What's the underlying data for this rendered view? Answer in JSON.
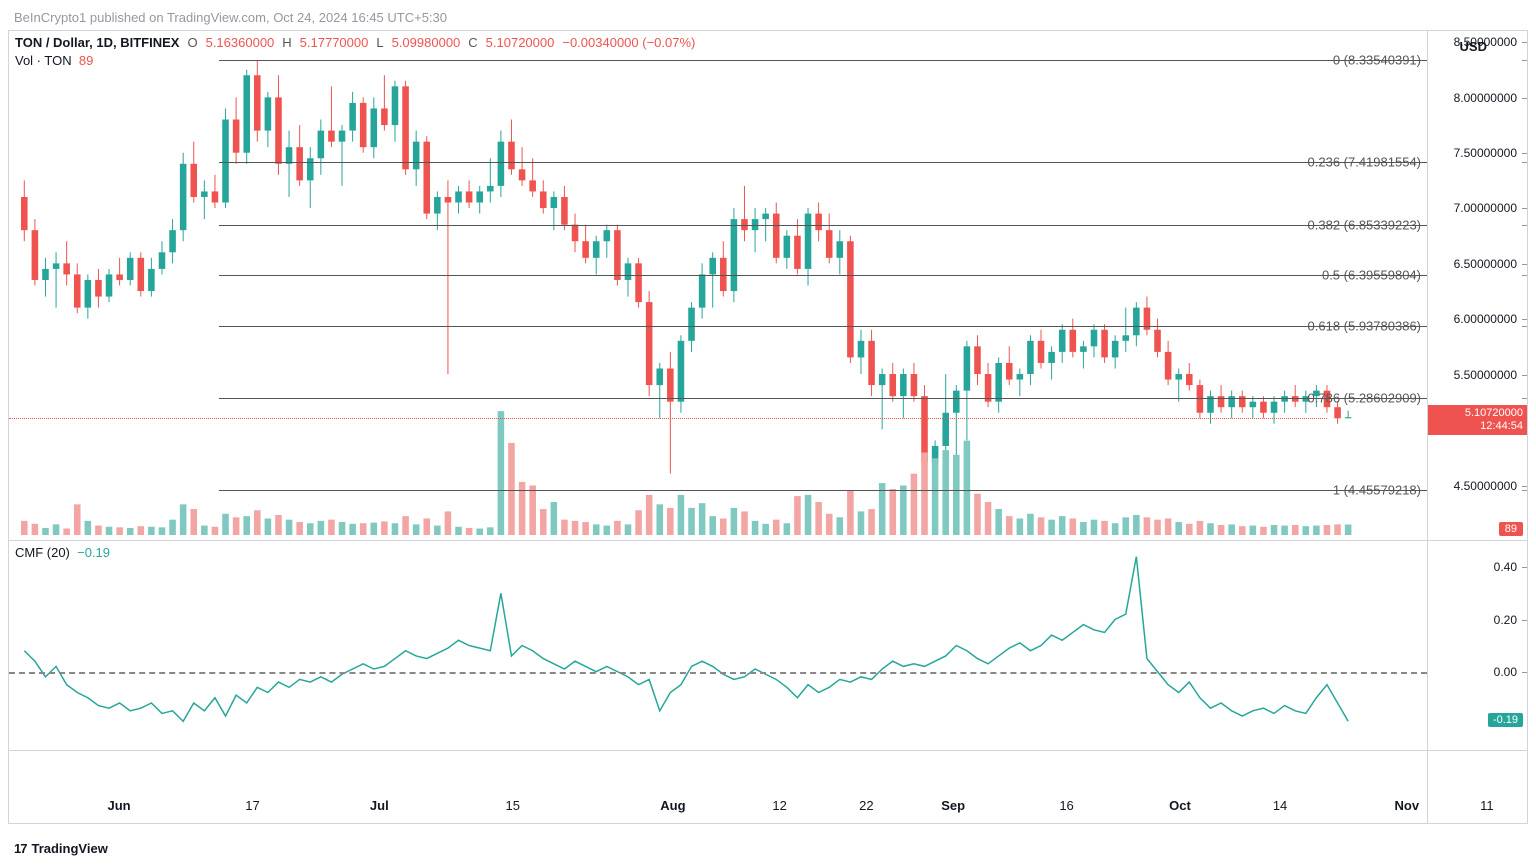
{
  "watermark": "BeInCrypto1 published on TradingView.com, Oct 24, 2024 16:45 UTC+5:30",
  "footer": {
    "logo": "17",
    "text": "TradingView"
  },
  "header": {
    "symbol": "TON / Dollar, 1D, BITFINEX",
    "o_lbl": "O",
    "o": "5.16360000",
    "h_lbl": "H",
    "h": "5.17770000",
    "l_lbl": "L",
    "l": "5.09980000",
    "c_lbl": "C",
    "c": "5.10720000",
    "chg": "−0.00340000 (−0.07%)"
  },
  "volume": {
    "label": "Vol · TON",
    "value": "89"
  },
  "usd_label": "USD",
  "price_chart": {
    "type": "candlestick",
    "ylim": [
      4.0,
      8.6
    ],
    "yticks": [
      4.5,
      5.0,
      5.5,
      6.0,
      6.5,
      7.0,
      7.5,
      8.0,
      8.5
    ],
    "ytick_labels": [
      "4.50000000",
      "5.00000000",
      "5.50000000",
      "6.00000000",
      "6.50000000",
      "7.00000000",
      "7.50000000",
      "8.00000000",
      "8.50000000"
    ],
    "up_color": "#26a69a",
    "down_color": "#ef5350",
    "background": "#ffffff",
    "fib_lines": [
      {
        "level": "0",
        "value": 8.33540391,
        "label": "0 (8.33540391)"
      },
      {
        "level": "0.236",
        "value": 7.41981554,
        "label": "0.236 (7.41981554)"
      },
      {
        "level": "0.382",
        "value": 6.85339223,
        "label": "0.382 (6.85339223)"
      },
      {
        "level": "0.5",
        "value": 6.39559804,
        "label": "0.5 (6.39559804)"
      },
      {
        "level": "0.618",
        "value": 5.93780386,
        "label": "0.618 (5.93780386)"
      },
      {
        "level": "0.786",
        "value": 5.28602909,
        "label": "0.786 (5.28602909)"
      },
      {
        "level": "1",
        "value": 4.45579218,
        "label": "1 (4.45579218)"
      }
    ],
    "price_tag": {
      "price": "5.10720000",
      "countdown": "12:44:54"
    },
    "vol_badge": "89",
    "volume_max": 1100,
    "candles": [
      {
        "o": 7.1,
        "h": 7.25,
        "l": 6.7,
        "c": 6.8,
        "v": 120
      },
      {
        "o": 6.8,
        "h": 6.9,
        "l": 6.3,
        "c": 6.35,
        "v": 95
      },
      {
        "o": 6.35,
        "h": 6.55,
        "l": 6.2,
        "c": 6.45,
        "v": 60
      },
      {
        "o": 6.45,
        "h": 6.6,
        "l": 6.1,
        "c": 6.5,
        "v": 90
      },
      {
        "o": 6.5,
        "h": 6.7,
        "l": 6.3,
        "c": 6.4,
        "v": 55
      },
      {
        "o": 6.4,
        "h": 6.5,
        "l": 6.05,
        "c": 6.1,
        "v": 260
      },
      {
        "o": 6.1,
        "h": 6.4,
        "l": 6.0,
        "c": 6.35,
        "v": 120
      },
      {
        "o": 6.35,
        "h": 6.45,
        "l": 6.1,
        "c": 6.2,
        "v": 80
      },
      {
        "o": 6.2,
        "h": 6.45,
        "l": 6.15,
        "c": 6.4,
        "v": 70
      },
      {
        "o": 6.4,
        "h": 6.55,
        "l": 6.3,
        "c": 6.35,
        "v": 65
      },
      {
        "o": 6.35,
        "h": 6.6,
        "l": 6.3,
        "c": 6.55,
        "v": 60
      },
      {
        "o": 6.55,
        "h": 6.6,
        "l": 6.2,
        "c": 6.25,
        "v": 75
      },
      {
        "o": 6.25,
        "h": 6.55,
        "l": 6.2,
        "c": 6.45,
        "v": 70
      },
      {
        "o": 6.45,
        "h": 6.7,
        "l": 6.4,
        "c": 6.6,
        "v": 65
      },
      {
        "o": 6.6,
        "h": 6.9,
        "l": 6.5,
        "c": 6.8,
        "v": 130
      },
      {
        "o": 6.8,
        "h": 7.5,
        "l": 6.7,
        "c": 7.4,
        "v": 260
      },
      {
        "o": 7.4,
        "h": 7.6,
        "l": 7.05,
        "c": 7.1,
        "v": 220
      },
      {
        "o": 7.1,
        "h": 7.25,
        "l": 6.9,
        "c": 7.15,
        "v": 80
      },
      {
        "o": 7.15,
        "h": 7.3,
        "l": 7.0,
        "c": 7.05,
        "v": 70
      },
      {
        "o": 7.05,
        "h": 7.9,
        "l": 7.0,
        "c": 7.8,
        "v": 180
      },
      {
        "o": 7.8,
        "h": 8.0,
        "l": 7.4,
        "c": 7.5,
        "v": 150
      },
      {
        "o": 7.5,
        "h": 8.25,
        "l": 7.4,
        "c": 8.2,
        "v": 160
      },
      {
        "o": 8.2,
        "h": 8.33,
        "l": 7.6,
        "c": 7.7,
        "v": 210
      },
      {
        "o": 7.7,
        "h": 8.05,
        "l": 7.55,
        "c": 8.0,
        "v": 140
      },
      {
        "o": 8.0,
        "h": 8.2,
        "l": 7.3,
        "c": 7.4,
        "v": 170
      },
      {
        "o": 7.4,
        "h": 7.7,
        "l": 7.1,
        "c": 7.55,
        "v": 130
      },
      {
        "o": 7.55,
        "h": 7.75,
        "l": 7.2,
        "c": 7.25,
        "v": 110
      },
      {
        "o": 7.25,
        "h": 7.55,
        "l": 7.0,
        "c": 7.45,
        "v": 100
      },
      {
        "o": 7.45,
        "h": 7.8,
        "l": 7.3,
        "c": 7.7,
        "v": 120
      },
      {
        "o": 7.7,
        "h": 8.1,
        "l": 7.55,
        "c": 7.6,
        "v": 130
      },
      {
        "o": 7.6,
        "h": 7.75,
        "l": 7.2,
        "c": 7.7,
        "v": 110
      },
      {
        "o": 7.7,
        "h": 8.05,
        "l": 7.6,
        "c": 7.95,
        "v": 95
      },
      {
        "o": 7.95,
        "h": 8.0,
        "l": 7.5,
        "c": 7.55,
        "v": 100
      },
      {
        "o": 7.55,
        "h": 8.0,
        "l": 7.45,
        "c": 7.9,
        "v": 105
      },
      {
        "o": 7.9,
        "h": 8.2,
        "l": 7.7,
        "c": 7.75,
        "v": 115
      },
      {
        "o": 7.75,
        "h": 8.15,
        "l": 7.6,
        "c": 8.1,
        "v": 100
      },
      {
        "o": 8.1,
        "h": 8.15,
        "l": 7.3,
        "c": 7.35,
        "v": 160
      },
      {
        "o": 7.35,
        "h": 7.7,
        "l": 7.2,
        "c": 7.6,
        "v": 90
      },
      {
        "o": 7.6,
        "h": 7.65,
        "l": 6.9,
        "c": 6.95,
        "v": 140
      },
      {
        "o": 6.95,
        "h": 7.15,
        "l": 6.8,
        "c": 7.1,
        "v": 80
      },
      {
        "o": 7.1,
        "h": 7.25,
        "l": 5.5,
        "c": 7.05,
        "v": 200
      },
      {
        "o": 7.05,
        "h": 7.2,
        "l": 6.95,
        "c": 7.15,
        "v": 70
      },
      {
        "o": 7.15,
        "h": 7.25,
        "l": 7.0,
        "c": 7.05,
        "v": 60
      },
      {
        "o": 7.05,
        "h": 7.2,
        "l": 6.95,
        "c": 7.15,
        "v": 55
      },
      {
        "o": 7.15,
        "h": 7.45,
        "l": 7.05,
        "c": 7.2,
        "v": 65
      },
      {
        "o": 7.2,
        "h": 7.7,
        "l": 7.1,
        "c": 7.6,
        "v": 1050
      },
      {
        "o": 7.6,
        "h": 7.8,
        "l": 7.3,
        "c": 7.35,
        "v": 780
      },
      {
        "o": 7.35,
        "h": 7.55,
        "l": 7.2,
        "c": 7.25,
        "v": 450
      },
      {
        "o": 7.25,
        "h": 7.45,
        "l": 7.1,
        "c": 7.15,
        "v": 420
      },
      {
        "o": 7.15,
        "h": 7.25,
        "l": 6.95,
        "c": 7.0,
        "v": 220
      },
      {
        "o": 7.0,
        "h": 7.15,
        "l": 6.8,
        "c": 7.1,
        "v": 280
      },
      {
        "o": 7.1,
        "h": 7.2,
        "l": 6.8,
        "c": 6.85,
        "v": 130
      },
      {
        "o": 6.85,
        "h": 6.95,
        "l": 6.6,
        "c": 6.7,
        "v": 120
      },
      {
        "o": 6.7,
        "h": 6.85,
        "l": 6.5,
        "c": 6.55,
        "v": 110
      },
      {
        "o": 6.55,
        "h": 6.75,
        "l": 6.4,
        "c": 6.7,
        "v": 90
      },
      {
        "o": 6.7,
        "h": 6.85,
        "l": 6.55,
        "c": 6.8,
        "v": 80
      },
      {
        "o": 6.8,
        "h": 6.85,
        "l": 6.3,
        "c": 6.35,
        "v": 120
      },
      {
        "o": 6.35,
        "h": 6.55,
        "l": 6.2,
        "c": 6.5,
        "v": 90
      },
      {
        "o": 6.5,
        "h": 6.55,
        "l": 6.1,
        "c": 6.15,
        "v": 210
      },
      {
        "o": 6.15,
        "h": 6.25,
        "l": 5.3,
        "c": 5.4,
        "v": 340
      },
      {
        "o": 5.4,
        "h": 5.6,
        "l": 5.1,
        "c": 5.55,
        "v": 260
      },
      {
        "o": 5.55,
        "h": 5.7,
        "l": 4.6,
        "c": 5.25,
        "v": 230
      },
      {
        "o": 5.25,
        "h": 5.85,
        "l": 5.15,
        "c": 5.8,
        "v": 340
      },
      {
        "o": 5.8,
        "h": 6.15,
        "l": 5.7,
        "c": 6.1,
        "v": 230
      },
      {
        "o": 6.1,
        "h": 6.5,
        "l": 6.0,
        "c": 6.4,
        "v": 270
      },
      {
        "o": 6.4,
        "h": 6.6,
        "l": 6.1,
        "c": 6.55,
        "v": 160
      },
      {
        "o": 6.55,
        "h": 6.7,
        "l": 6.2,
        "c": 6.25,
        "v": 140
      },
      {
        "o": 6.25,
        "h": 7.0,
        "l": 6.15,
        "c": 6.9,
        "v": 230
      },
      {
        "o": 6.9,
        "h": 7.2,
        "l": 6.7,
        "c": 6.8,
        "v": 200
      },
      {
        "o": 6.8,
        "h": 7.0,
        "l": 6.6,
        "c": 6.9,
        "v": 120
      },
      {
        "o": 6.9,
        "h": 7.0,
        "l": 6.7,
        "c": 6.95,
        "v": 95
      },
      {
        "o": 6.95,
        "h": 7.05,
        "l": 6.5,
        "c": 6.55,
        "v": 130
      },
      {
        "o": 6.55,
        "h": 6.8,
        "l": 6.45,
        "c": 6.75,
        "v": 100
      },
      {
        "o": 6.75,
        "h": 6.9,
        "l": 6.4,
        "c": 6.45,
        "v": 330
      },
      {
        "o": 6.45,
        "h": 7.0,
        "l": 6.3,
        "c": 6.95,
        "v": 340
      },
      {
        "o": 6.95,
        "h": 7.05,
        "l": 6.7,
        "c": 6.8,
        "v": 280
      },
      {
        "o": 6.8,
        "h": 6.95,
        "l": 6.5,
        "c": 6.55,
        "v": 180
      },
      {
        "o": 6.55,
        "h": 6.8,
        "l": 6.4,
        "c": 6.7,
        "v": 150
      },
      {
        "o": 6.7,
        "h": 6.75,
        "l": 5.6,
        "c": 5.65,
        "v": 380
      },
      {
        "o": 5.65,
        "h": 5.9,
        "l": 5.5,
        "c": 5.8,
        "v": 200
      },
      {
        "o": 5.8,
        "h": 5.9,
        "l": 5.3,
        "c": 5.4,
        "v": 220
      },
      {
        "o": 5.4,
        "h": 5.55,
        "l": 5.0,
        "c": 5.5,
        "v": 440
      },
      {
        "o": 5.5,
        "h": 5.6,
        "l": 5.25,
        "c": 5.3,
        "v": 390
      },
      {
        "o": 5.3,
        "h": 5.55,
        "l": 5.1,
        "c": 5.5,
        "v": 420
      },
      {
        "o": 5.5,
        "h": 5.6,
        "l": 5.25,
        "c": 5.3,
        "v": 520
      },
      {
        "o": 5.3,
        "h": 5.4,
        "l": 4.6,
        "c": 4.7,
        "v": 700
      },
      {
        "o": 4.7,
        "h": 4.9,
        "l": 4.46,
        "c": 4.85,
        "v": 650
      },
      {
        "o": 4.85,
        "h": 5.5,
        "l": 4.5,
        "c": 5.15,
        "v": 720
      },
      {
        "o": 5.15,
        "h": 5.4,
        "l": 4.7,
        "c": 5.35,
        "v": 680
      },
      {
        "o": 5.35,
        "h": 5.8,
        "l": 4.9,
        "c": 5.75,
        "v": 800
      },
      {
        "o": 5.75,
        "h": 5.85,
        "l": 5.4,
        "c": 5.5,
        "v": 350
      },
      {
        "o": 5.5,
        "h": 5.6,
        "l": 5.2,
        "c": 5.25,
        "v": 280
      },
      {
        "o": 5.25,
        "h": 5.65,
        "l": 5.15,
        "c": 5.6,
        "v": 220
      },
      {
        "o": 5.6,
        "h": 5.75,
        "l": 5.4,
        "c": 5.45,
        "v": 160
      },
      {
        "o": 5.45,
        "h": 5.55,
        "l": 5.3,
        "c": 5.5,
        "v": 140
      },
      {
        "o": 5.5,
        "h": 5.85,
        "l": 5.4,
        "c": 5.8,
        "v": 180
      },
      {
        "o": 5.8,
        "h": 5.9,
        "l": 5.55,
        "c": 5.6,
        "v": 150
      },
      {
        "o": 5.6,
        "h": 5.75,
        "l": 5.45,
        "c": 5.7,
        "v": 130
      },
      {
        "o": 5.7,
        "h": 5.95,
        "l": 5.6,
        "c": 5.9,
        "v": 160
      },
      {
        "o": 5.9,
        "h": 6.0,
        "l": 5.65,
        "c": 5.7,
        "v": 140
      },
      {
        "o": 5.7,
        "h": 5.8,
        "l": 5.55,
        "c": 5.75,
        "v": 110
      },
      {
        "o": 5.75,
        "h": 5.95,
        "l": 5.65,
        "c": 5.9,
        "v": 130
      },
      {
        "o": 5.9,
        "h": 5.95,
        "l": 5.6,
        "c": 5.65,
        "v": 120
      },
      {
        "o": 5.65,
        "h": 5.85,
        "l": 5.55,
        "c": 5.8,
        "v": 100
      },
      {
        "o": 5.8,
        "h": 6.1,
        "l": 5.7,
        "c": 5.85,
        "v": 150
      },
      {
        "o": 5.85,
        "h": 6.15,
        "l": 5.75,
        "c": 6.1,
        "v": 170
      },
      {
        "o": 6.1,
        "h": 6.2,
        "l": 5.85,
        "c": 5.9,
        "v": 150
      },
      {
        "o": 5.9,
        "h": 6.0,
        "l": 5.65,
        "c": 5.7,
        "v": 130
      },
      {
        "o": 5.7,
        "h": 5.8,
        "l": 5.4,
        "c": 5.45,
        "v": 140
      },
      {
        "o": 5.45,
        "h": 5.55,
        "l": 5.25,
        "c": 5.5,
        "v": 110
      },
      {
        "o": 5.5,
        "h": 5.6,
        "l": 5.35,
        "c": 5.4,
        "v": 95
      },
      {
        "o": 5.4,
        "h": 5.45,
        "l": 5.1,
        "c": 5.15,
        "v": 120
      },
      {
        "o": 5.15,
        "h": 5.35,
        "l": 5.05,
        "c": 5.3,
        "v": 100
      },
      {
        "o": 5.3,
        "h": 5.4,
        "l": 5.15,
        "c": 5.2,
        "v": 85
      },
      {
        "o": 5.2,
        "h": 5.35,
        "l": 5.1,
        "c": 5.3,
        "v": 90
      },
      {
        "o": 5.3,
        "h": 5.35,
        "l": 5.15,
        "c": 5.2,
        "v": 75
      },
      {
        "o": 5.2,
        "h": 5.3,
        "l": 5.1,
        "c": 5.25,
        "v": 80
      },
      {
        "o": 5.25,
        "h": 5.3,
        "l": 5.1,
        "c": 5.15,
        "v": 70
      },
      {
        "o": 5.15,
        "h": 5.3,
        "l": 5.05,
        "c": 5.25,
        "v": 85
      },
      {
        "o": 5.25,
        "h": 5.35,
        "l": 5.15,
        "c": 5.3,
        "v": 80
      },
      {
        "o": 5.3,
        "h": 5.4,
        "l": 5.2,
        "c": 5.25,
        "v": 85
      },
      {
        "o": 5.25,
        "h": 5.35,
        "l": 5.15,
        "c": 5.3,
        "v": 75
      },
      {
        "o": 5.3,
        "h": 5.4,
        "l": 5.2,
        "c": 5.35,
        "v": 80
      },
      {
        "o": 5.35,
        "h": 5.4,
        "l": 5.15,
        "c": 5.2,
        "v": 85
      },
      {
        "o": 5.2,
        "h": 5.25,
        "l": 5.05,
        "c": 5.1,
        "v": 90
      },
      {
        "o": 5.1,
        "h": 5.17,
        "l": 5.1,
        "c": 5.11,
        "v": 89
      }
    ]
  },
  "cmf": {
    "label": "CMF (20)",
    "value": "−0.19",
    "line_color": "#26a69a",
    "ylim": [
      -0.3,
      0.5
    ],
    "yticks": [
      0.0,
      0.2,
      0.4
    ],
    "ytick_labels": [
      "0.00",
      "0.20",
      "0.40"
    ],
    "badge": "-0.19",
    "points": [
      0.08,
      0.04,
      -0.02,
      0.02,
      -0.05,
      -0.08,
      -0.1,
      -0.13,
      -0.14,
      -0.12,
      -0.15,
      -0.14,
      -0.12,
      -0.16,
      -0.15,
      -0.19,
      -0.12,
      -0.15,
      -0.1,
      -0.17,
      -0.09,
      -0.12,
      -0.06,
      -0.08,
      -0.04,
      -0.06,
      -0.03,
      -0.04,
      -0.02,
      -0.04,
      -0.01,
      0.01,
      0.03,
      0.01,
      0.02,
      0.05,
      0.08,
      0.06,
      0.05,
      0.07,
      0.09,
      0.12,
      0.1,
      0.09,
      0.08,
      0.3,
      0.06,
      0.1,
      0.08,
      0.05,
      0.03,
      0.01,
      0.04,
      0.02,
      0.0,
      0.02,
      0.0,
      -0.02,
      -0.05,
      -0.03,
      -0.15,
      -0.08,
      -0.05,
      0.02,
      0.04,
      0.02,
      -0.01,
      -0.03,
      -0.02,
      0.01,
      -0.01,
      -0.03,
      -0.06,
      -0.1,
      -0.05,
      -0.08,
      -0.06,
      -0.03,
      -0.04,
      -0.02,
      -0.03,
      0.01,
      0.04,
      0.02,
      0.03,
      0.02,
      0.04,
      0.06,
      0.1,
      0.08,
      0.05,
      0.03,
      0.06,
      0.09,
      0.11,
      0.08,
      0.1,
      0.14,
      0.12,
      0.15,
      0.18,
      0.16,
      0.15,
      0.2,
      0.22,
      0.44,
      0.05,
      0.0,
      -0.05,
      -0.08,
      -0.04,
      -0.1,
      -0.14,
      -0.12,
      -0.15,
      -0.17,
      -0.15,
      -0.14,
      -0.16,
      -0.13,
      -0.15,
      -0.16,
      -0.1,
      -0.05,
      -0.12,
      -0.19
    ]
  },
  "xaxis": {
    "ticks": [
      {
        "pos": 0.075,
        "label": "Jun",
        "bold": true
      },
      {
        "pos": 0.175,
        "label": "17",
        "bold": false
      },
      {
        "pos": 0.27,
        "label": "Jul",
        "bold": true
      },
      {
        "pos": 0.37,
        "label": "15",
        "bold": false
      },
      {
        "pos": 0.49,
        "label": "Aug",
        "bold": true
      },
      {
        "pos": 0.57,
        "label": "12",
        "bold": false
      },
      {
        "pos": 0.635,
        "label": "22",
        "bold": false
      },
      {
        "pos": 0.7,
        "label": "Sep",
        "bold": true
      },
      {
        "pos": 0.785,
        "label": "16",
        "bold": false
      },
      {
        "pos": 0.87,
        "label": "Oct",
        "bold": true
      },
      {
        "pos": 0.945,
        "label": "14",
        "bold": false
      },
      {
        "pos": 1.04,
        "label": "Nov",
        "bold": true
      },
      {
        "pos": 1.1,
        "label": "11",
        "bold": false
      }
    ]
  }
}
